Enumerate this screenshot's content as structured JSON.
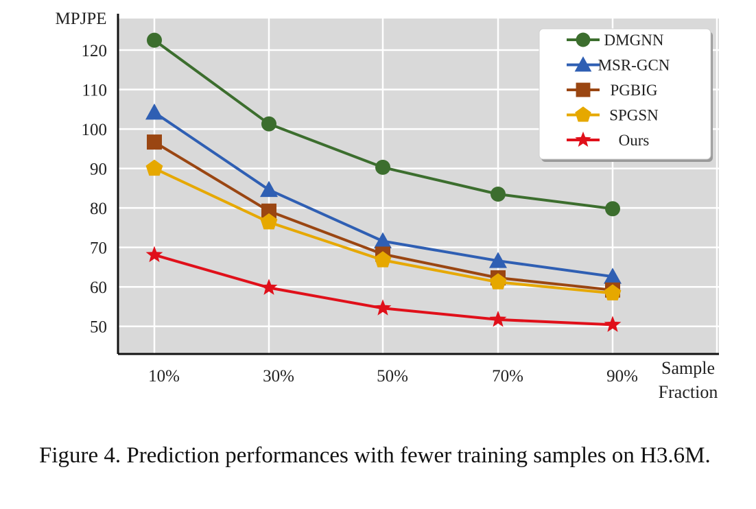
{
  "chart_data": {
    "type": "line",
    "ylabel": "MPJPE",
    "xlabel": [
      "Sample",
      "Fraction"
    ],
    "categories": [
      "10%",
      "30%",
      "50%",
      "70%",
      "90%"
    ],
    "yticks": [
      50,
      60,
      70,
      80,
      90,
      100,
      110,
      120
    ],
    "ylim": [
      43,
      128
    ],
    "grid": true,
    "legend_position": "top-right",
    "series": [
      {
        "name": "DMGNN",
        "values": [
          122.5,
          101.3,
          90.3,
          83.5,
          79.8
        ],
        "color": "#3c6e2e",
        "marker": "circle"
      },
      {
        "name": "MSR-GCN",
        "values": [
          104.2,
          84.6,
          71.6,
          66.6,
          62.6
        ],
        "color": "#2f5fb3",
        "marker": "triangle"
      },
      {
        "name": "PGBIG",
        "values": [
          96.7,
          79.2,
          68.3,
          62.3,
          59.2
        ],
        "color": "#9a4612",
        "marker": "square"
      },
      {
        "name": "SPGSN",
        "values": [
          90.0,
          76.4,
          66.8,
          61.2,
          58.4
        ],
        "color": "#e6a800",
        "marker": "pentagon"
      },
      {
        "name": "Ours",
        "values": [
          68.1,
          59.8,
          54.6,
          51.7,
          50.4
        ],
        "color": "#e0101a",
        "marker": "star"
      }
    ]
  },
  "caption": "Figure 4. Prediction performances with fewer training samples on H3.6M."
}
